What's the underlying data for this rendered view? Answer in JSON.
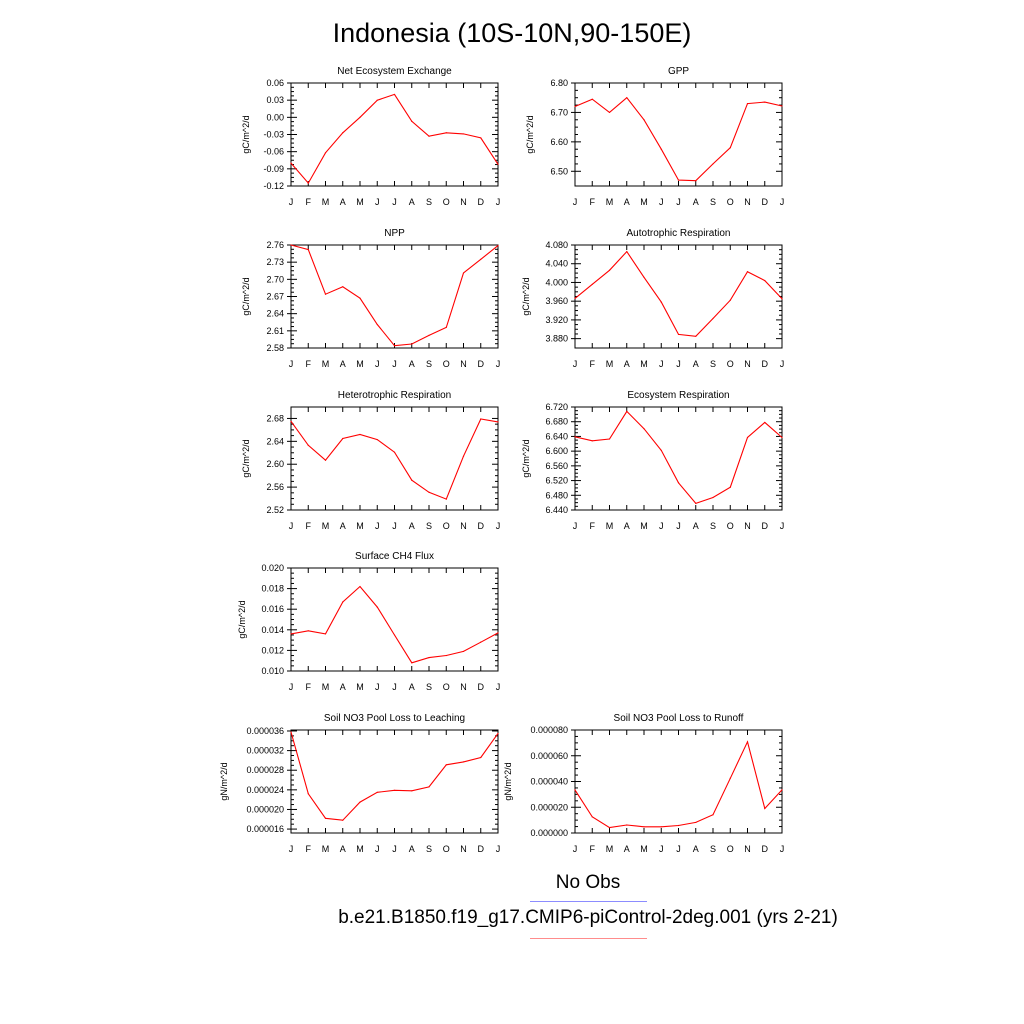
{
  "title": "Indonesia (10S-10N,90-150E)",
  "legend": {
    "obs_label": "No Obs",
    "case_label": "b.e21.B1850.f19_g17.CMIP6-piControl-2deg.001 (yrs 2-21)",
    "obs_color": "#8c8cff",
    "case_color": "#ff8c8c"
  },
  "chart_data": [
    {
      "type": "line",
      "title": "Net Ecosystem Exchange",
      "ylabel": "gC/m^2/d",
      "categories": [
        "J",
        "F",
        "M",
        "A",
        "M",
        "J",
        "J",
        "A",
        "S",
        "O",
        "N",
        "D",
        "J"
      ],
      "ylim": [
        -0.12,
        0.06
      ],
      "yticks": [
        "0.06",
        "0.03",
        "0.00",
        "-0.03",
        "-0.06",
        "-0.09",
        "-0.12"
      ],
      "series": [
        {
          "name": "case",
          "color": "#ff0000",
          "values": [
            -0.08,
            -0.115,
            -0.062,
            -0.027,
            0.0,
            0.03,
            0.04,
            -0.007,
            -0.033,
            -0.027,
            -0.029,
            -0.036,
            -0.082
          ]
        }
      ]
    },
    {
      "type": "line",
      "title": "GPP",
      "ylabel": "gC/m^2/d",
      "categories": [
        "J",
        "F",
        "M",
        "A",
        "M",
        "J",
        "J",
        "A",
        "S",
        "O",
        "N",
        "D",
        "J"
      ],
      "ylim": [
        6.45,
        6.8
      ],
      "yticks": [
        "6.80",
        "6.70",
        "6.60",
        "6.50"
      ],
      "series": [
        {
          "name": "case",
          "color": "#ff0000",
          "values": [
            6.72,
            6.745,
            6.7,
            6.75,
            6.675,
            6.575,
            6.47,
            6.468,
            6.525,
            6.58,
            6.73,
            6.735,
            6.722
          ]
        }
      ]
    },
    {
      "type": "line",
      "title": "NPP",
      "ylabel": "gC/m^2/d",
      "categories": [
        "J",
        "F",
        "M",
        "A",
        "M",
        "J",
        "J",
        "A",
        "S",
        "O",
        "N",
        "D",
        "J"
      ],
      "ylim": [
        2.58,
        2.76
      ],
      "yticks": [
        "2.76",
        "2.73",
        "2.70",
        "2.67",
        "2.64",
        "2.61",
        "2.58"
      ],
      "series": [
        {
          "name": "case",
          "color": "#ff0000",
          "values": [
            2.76,
            2.752,
            2.674,
            2.687,
            2.667,
            2.621,
            2.584,
            2.587,
            2.602,
            2.616,
            2.711,
            2.735,
            2.759
          ]
        }
      ]
    },
    {
      "type": "line",
      "title": "Autotrophic Respiration",
      "ylabel": "gC/m^2/d",
      "categories": [
        "J",
        "F",
        "M",
        "A",
        "M",
        "J",
        "J",
        "A",
        "S",
        "O",
        "N",
        "D",
        "J"
      ],
      "ylim": [
        3.86,
        4.08
      ],
      "yticks": [
        "4.080",
        "4.040",
        "4.000",
        "3.960",
        "3.920",
        "3.880"
      ],
      "series": [
        {
          "name": "case",
          "color": "#ff0000",
          "values": [
            3.966,
            3.996,
            4.026,
            4.066,
            4.011,
            3.958,
            3.889,
            3.885,
            3.923,
            3.962,
            4.023,
            4.004,
            3.965
          ]
        }
      ]
    },
    {
      "type": "line",
      "title": "Heterotrophic Respiration",
      "ylabel": "gC/m^2/d",
      "categories": [
        "J",
        "F",
        "M",
        "A",
        "M",
        "J",
        "J",
        "A",
        "S",
        "O",
        "N",
        "D",
        "J"
      ],
      "ylim": [
        2.52,
        2.7
      ],
      "yticks": [
        "2.68",
        "2.64",
        "2.60",
        "2.56",
        "2.52"
      ],
      "series": [
        {
          "name": "case",
          "color": "#ff0000",
          "values": [
            2.675,
            2.633,
            2.607,
            2.645,
            2.652,
            2.643,
            2.621,
            2.572,
            2.551,
            2.539,
            2.614,
            2.679,
            2.674
          ]
        }
      ]
    },
    {
      "type": "line",
      "title": "Ecosystem Respiration",
      "ylabel": "gC/m^2/d",
      "categories": [
        "J",
        "F",
        "M",
        "A",
        "M",
        "J",
        "J",
        "A",
        "S",
        "O",
        "N",
        "D",
        "J"
      ],
      "ylim": [
        6.44,
        6.72
      ],
      "yticks": [
        "6.720",
        "6.680",
        "6.640",
        "6.600",
        "6.560",
        "6.520",
        "6.480",
        "6.440"
      ],
      "series": [
        {
          "name": "case",
          "color": "#ff0000",
          "values": [
            6.639,
            6.628,
            6.633,
            6.708,
            6.661,
            6.602,
            6.514,
            6.458,
            6.474,
            6.502,
            6.637,
            6.678,
            6.637
          ]
        }
      ]
    },
    {
      "type": "line",
      "title": "Surface CH4 Flux",
      "ylabel": "gC/m^2/d",
      "categories": [
        "J",
        "F",
        "M",
        "A",
        "M",
        "J",
        "J",
        "A",
        "S",
        "O",
        "N",
        "D",
        "J"
      ],
      "ylim": [
        0.01,
        0.02
      ],
      "yticks": [
        "0.020",
        "0.018",
        "0.016",
        "0.014",
        "0.012",
        "0.010"
      ],
      "series": [
        {
          "name": "case",
          "color": "#ff0000",
          "values": [
            0.0136,
            0.0139,
            0.0136,
            0.0167,
            0.0182,
            0.0162,
            0.0135,
            0.0108,
            0.0113,
            0.0115,
            0.0119,
            0.0128,
            0.0137
          ]
        }
      ]
    },
    {
      "type": "line",
      "title": "Soil NO3 Pool Loss to Leaching",
      "ylabel": "gN/m^2/d",
      "categories": [
        "J",
        "F",
        "M",
        "A",
        "M",
        "J",
        "J",
        "A",
        "S",
        "O",
        "N",
        "D",
        "J"
      ],
      "ylim": [
        1.52e-05,
        3.62e-05
      ],
      "yticks": [
        "0.000036",
        "0.000032",
        "0.000028",
        "0.000024",
        "0.000020",
        "0.000016"
      ],
      "series": [
        {
          "name": "case",
          "color": "#ff0000",
          "values": [
            3.58e-05,
            2.32e-05,
            1.82e-05,
            1.78e-05,
            2.15e-05,
            2.35e-05,
            2.39e-05,
            2.38e-05,
            2.46e-05,
            2.91e-05,
            2.97e-05,
            3.06e-05,
            3.55e-05
          ]
        }
      ]
    },
    {
      "type": "line",
      "title": "Soil NO3 Pool Loss to Runoff",
      "ylabel": "gN/m^2/d",
      "categories": [
        "J",
        "F",
        "M",
        "A",
        "M",
        "J",
        "J",
        "A",
        "S",
        "O",
        "N",
        "D",
        "J"
      ],
      "ylim": [
        0.0,
        8e-05
      ],
      "yticks": [
        "0.000080",
        "0.000060",
        "0.000040",
        "0.000020",
        "0.000000"
      ],
      "series": [
        {
          "name": "case",
          "color": "#ff0000",
          "values": [
            3.35e-05,
            1.25e-05,
            4.2e-06,
            6.2e-06,
            4.8e-06,
            4.8e-06,
            5.8e-06,
            8.2e-06,
            1.42e-05,
            4.25e-05,
            7.08e-05,
            1.9e-05,
            3.35e-05
          ]
        }
      ]
    }
  ]
}
